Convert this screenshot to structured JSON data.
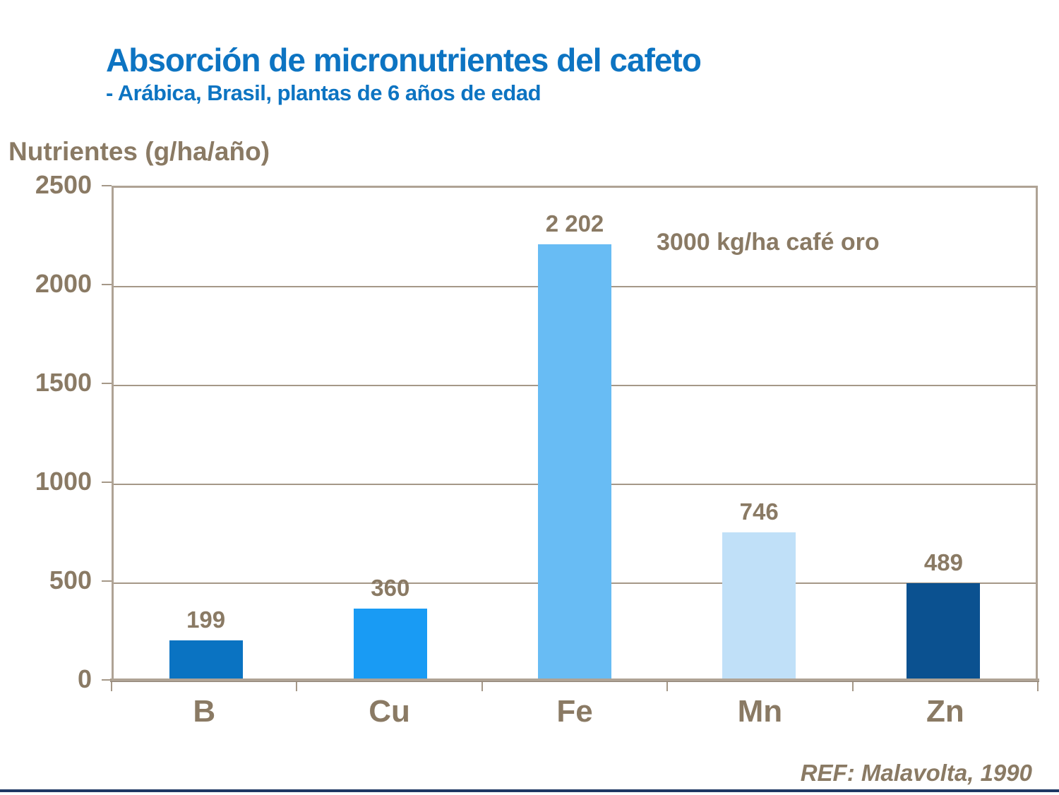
{
  "slide": {
    "title": "Absorción de micronutrientes del cafeto",
    "subtitle": "- Arábica, Brasil, plantas de 6 años de edad",
    "reference": "REF: Malavolta, 1990"
  },
  "colors": {
    "title_blue": "#0D74C2",
    "text_brown": "#8A7A64",
    "frame_tan": "#AFA395",
    "gridline": "#A59888",
    "bottom_rule_navy": "#1F3864"
  },
  "chart_data": {
    "type": "bar",
    "title": "Absorción de micronutrientes del cafeto",
    "subtitle": "- Arábica, Brasil, plantas de 6 años de edad",
    "ylabel": "Nutrientes (g/ha/año)",
    "xlabel": "",
    "categories": [
      "B",
      "Cu",
      "Fe",
      "Mn",
      "Zn"
    ],
    "values": [
      199,
      360,
      2202,
      746,
      489
    ],
    "value_labels": [
      "199",
      "360",
      "2 202",
      "746",
      "489"
    ],
    "bar_colors": [
      "#0A73C2",
      "#199BF4",
      "#68BCF4",
      "#C0E0F8",
      "#0B5190"
    ],
    "ylim": [
      0,
      2500
    ],
    "yticks": [
      0,
      500,
      1000,
      1500,
      2000,
      2500
    ],
    "grid": true,
    "legend": "none",
    "annotation": "3000 kg/ha café oro",
    "reference": "REF: Malavolta, 1990"
  }
}
